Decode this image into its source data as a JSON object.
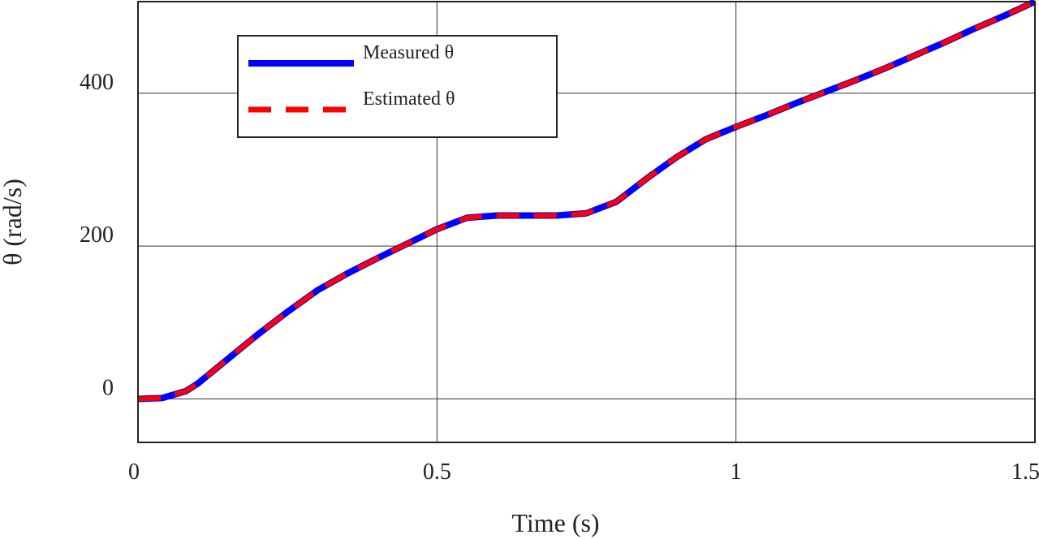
{
  "chart_data": {
    "type": "line",
    "title": "",
    "xlabel": "Time (s)",
    "ylabel": "θ (rad/s)",
    "xlim": [
      0,
      1.5
    ],
    "ylim": [
      -57,
      520
    ],
    "xticks": [
      0,
      0.5,
      1,
      1.5
    ],
    "xtick_labels": [
      "0",
      "0.5",
      "1",
      "1.5"
    ],
    "yticks": [
      0,
      200,
      400
    ],
    "ytick_labels": [
      "0",
      "200",
      "400"
    ],
    "grid": true,
    "legend_position": "top-left",
    "series": [
      {
        "name": "Measured θ",
        "color": "#0000ff",
        "style": "solid",
        "x": [
          0,
          0.04,
          0.08,
          0.1,
          0.15,
          0.2,
          0.25,
          0.3,
          0.35,
          0.4,
          0.45,
          0.5,
          0.55,
          0.6,
          0.65,
          0.7,
          0.75,
          0.8,
          0.85,
          0.9,
          0.95,
          1.0,
          1.05,
          1.1,
          1.15,
          1.2,
          1.25,
          1.3,
          1.35,
          1.4,
          1.45,
          1.5
        ],
        "y": [
          0,
          1,
          10,
          20,
          52,
          84,
          114,
          142,
          164,
          184,
          203,
          222,
          237,
          240,
          240,
          240,
          243,
          258,
          288,
          316,
          340,
          356,
          371,
          387,
          402,
          417,
          433,
          450,
          467,
          485,
          502,
          520
        ]
      },
      {
        "name": "Estimated θ",
        "color": "#ff0000",
        "style": "dashed",
        "x": [
          0,
          0.04,
          0.08,
          0.1,
          0.15,
          0.2,
          0.25,
          0.3,
          0.35,
          0.4,
          0.45,
          0.5,
          0.55,
          0.6,
          0.65,
          0.7,
          0.75,
          0.8,
          0.85,
          0.9,
          0.95,
          1.0,
          1.05,
          1.1,
          1.15,
          1.2,
          1.25,
          1.3,
          1.35,
          1.4,
          1.45,
          1.5
        ],
        "y": [
          0,
          1,
          10,
          20,
          52,
          84,
          114,
          142,
          164,
          184,
          203,
          222,
          237,
          240,
          240,
          240,
          243,
          258,
          288,
          316,
          340,
          356,
          371,
          387,
          402,
          417,
          433,
          450,
          467,
          485,
          502,
          520
        ]
      }
    ]
  }
}
